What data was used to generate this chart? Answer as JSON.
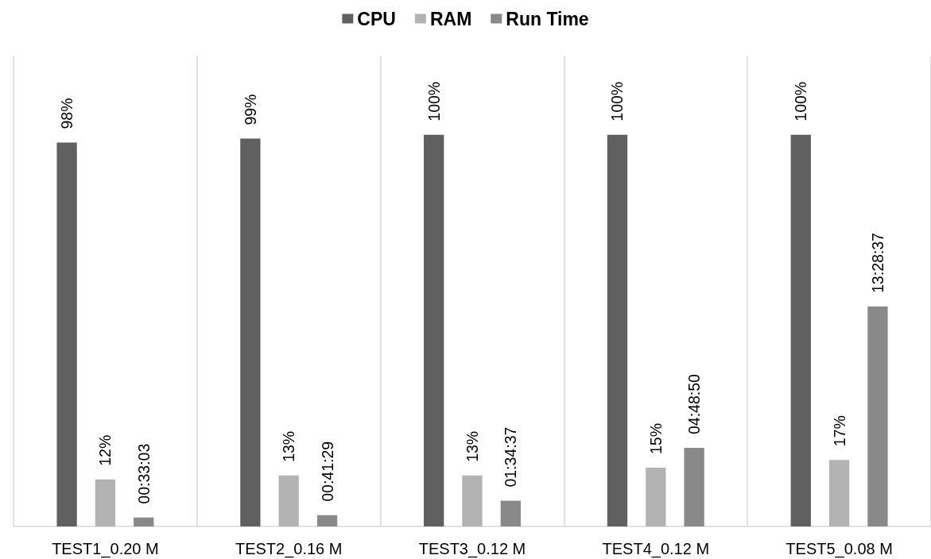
{
  "chart_data": {
    "type": "bar",
    "categories": [
      "TEST1_0.20 M",
      "TEST2_0.16 M",
      "TEST3_0.12 M",
      "TEST4_0.12 M",
      "TEST5_0.08 M"
    ],
    "series": [
      {
        "name": "CPU",
        "color": "#606060",
        "values": [
          98,
          99,
          100,
          100,
          100
        ],
        "value_labels": [
          "98%",
          "99%",
          "100%",
          "100%",
          "100%"
        ]
      },
      {
        "name": "RAM",
        "color": "#b3b3b3",
        "values": [
          12,
          13,
          13,
          15,
          17
        ],
        "value_labels": [
          "12%",
          "13%",
          "13%",
          "15%",
          "17%"
        ]
      },
      {
        "name": "Run Time",
        "color": "#898989",
        "axis": "y2",
        "values": [
          0.5508,
          0.6914,
          1.5769,
          4.8139,
          13.4769
        ],
        "value_labels": [
          "00:33:03",
          "00:41:29",
          "01:34:37",
          "04:48:50",
          "13:28:37"
        ]
      }
    ],
    "ylim": [
      0,
      120
    ],
    "y2lim": [
      0,
      28.8
    ],
    "tick_labels": "x",
    "legend": "top",
    "grid": "x"
  }
}
